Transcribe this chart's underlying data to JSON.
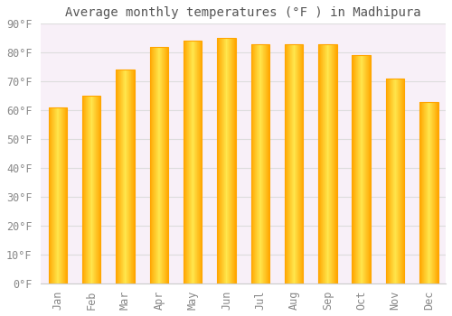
{
  "title": "Average monthly temperatures (°F ) in Madhipura",
  "months": [
    "Jan",
    "Feb",
    "Mar",
    "Apr",
    "May",
    "Jun",
    "Jul",
    "Aug",
    "Sep",
    "Oct",
    "Nov",
    "Dec"
  ],
  "values": [
    61,
    65,
    74,
    82,
    84,
    85,
    83,
    83,
    83,
    79,
    71,
    63
  ],
  "bar_color_light": "#FFD966",
  "bar_color_dark": "#FFA500",
  "background_color": "#FFFFFF",
  "plot_bg_color": "#F8F0F8",
  "grid_color": "#DDDDDD",
  "ylim": [
    0,
    90
  ],
  "yticks": [
    0,
    10,
    20,
    30,
    40,
    50,
    60,
    70,
    80,
    90
  ],
  "title_fontsize": 10,
  "tick_fontsize": 8.5,
  "bar_width": 0.55
}
